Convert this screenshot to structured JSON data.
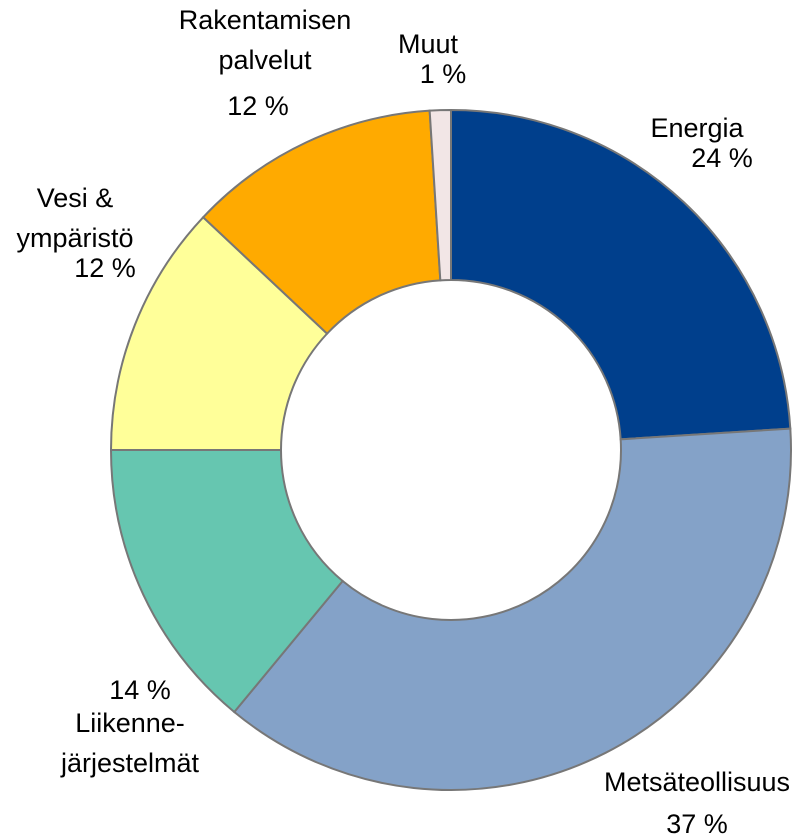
{
  "chart_data": {
    "type": "donut",
    "categories": [
      "Energia",
      "Metsäteollisuus",
      "Liikenne-\njärjestelmät",
      "Vesi &\nympäristö",
      "Rakentamisen\npalvelut",
      "Muut"
    ],
    "values": [
      24,
      37,
      14,
      12,
      12,
      1
    ],
    "value_labels": [
      "24 %",
      "37 %",
      "14 %",
      "12 %",
      "12 %",
      "1 %"
    ],
    "colors": [
      "#003f8c",
      "#84a2c8",
      "#66c6b0",
      "#ffff99",
      "#ffaa00",
      "#f2e6e6"
    ]
  }
}
